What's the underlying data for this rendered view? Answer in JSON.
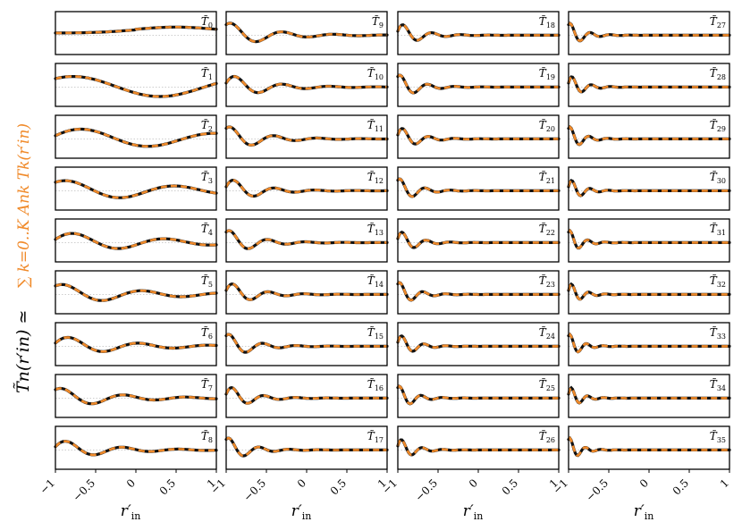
{
  "chart_data": {
    "type": "line",
    "layout_grid": {
      "rows": 9,
      "cols": 4
    },
    "panels": [
      {
        "label": "T̃",
        "sub": "0",
        "n": 0
      },
      {
        "label": "T̃",
        "sub": "1",
        "n": 1
      },
      {
        "label": "T̃",
        "sub": "2",
        "n": 2
      },
      {
        "label": "T̃",
        "sub": "3",
        "n": 3
      },
      {
        "label": "T̃",
        "sub": "4",
        "n": 4
      },
      {
        "label": "T̃",
        "sub": "5",
        "n": 5
      },
      {
        "label": "T̃",
        "sub": "6",
        "n": 6
      },
      {
        "label": "T̃",
        "sub": "7",
        "n": 7
      },
      {
        "label": "T̃",
        "sub": "8",
        "n": 8
      },
      {
        "label": "T̃",
        "sub": "9",
        "n": 9
      },
      {
        "label": "T̃",
        "sub": "10",
        "n": 10
      },
      {
        "label": "T̃",
        "sub": "11",
        "n": 11
      },
      {
        "label": "T̃",
        "sub": "12",
        "n": 12
      },
      {
        "label": "T̃",
        "sub": "13",
        "n": 13
      },
      {
        "label": "T̃",
        "sub": "14",
        "n": 14
      },
      {
        "label": "T̃",
        "sub": "15",
        "n": 15
      },
      {
        "label": "T̃",
        "sub": "16",
        "n": 16
      },
      {
        "label": "T̃",
        "sub": "17",
        "n": 17
      },
      {
        "label": "T̃",
        "sub": "18",
        "n": 18
      },
      {
        "label": "T̃",
        "sub": "19",
        "n": 19
      },
      {
        "label": "T̃",
        "sub": "20",
        "n": 20
      },
      {
        "label": "T̃",
        "sub": "21",
        "n": 21
      },
      {
        "label": "T̃",
        "sub": "22",
        "n": 22
      },
      {
        "label": "T̃",
        "sub": "23",
        "n": 23
      },
      {
        "label": "T̃",
        "sub": "24",
        "n": 24
      },
      {
        "label": "T̃",
        "sub": "25",
        "n": 25
      },
      {
        "label": "T̃",
        "sub": "26",
        "n": 26
      },
      {
        "label": "T̃",
        "sub": "27",
        "n": 27
      },
      {
        "label": "T̃",
        "sub": "28",
        "n": 28
      },
      {
        "label": "T̃",
        "sub": "29",
        "n": 29
      },
      {
        "label": "T̃",
        "sub": "30",
        "n": 30
      },
      {
        "label": "T̃",
        "sub": "31",
        "n": 31
      },
      {
        "label": "T̃",
        "sub": "32",
        "n": 32
      },
      {
        "label": "T̃",
        "sub": "33",
        "n": 33
      },
      {
        "label": "T̃",
        "sub": "34",
        "n": 34
      },
      {
        "label": "T̃",
        "sub": "35",
        "n": 35
      }
    ],
    "xlim": [
      -1,
      1
    ],
    "x_ticks": [
      "−1",
      "−0.5",
      "0",
      "0.5",
      "1"
    ],
    "x_tick_values": [
      -1,
      -0.5,
      0,
      0.5,
      1
    ],
    "xlabel": "r′",
    "xlabel_sub": "in",
    "ylabel_black": "T̃n(r′in) ≃",
    "ylabel_orange": "∑ k=0..K Ank Tk(r′in)",
    "series_styles": [
      {
        "style": "solid",
        "color": "#111111"
      },
      {
        "style": "dashed",
        "color": "#f08a2a"
      }
    ],
    "grid": false
  }
}
